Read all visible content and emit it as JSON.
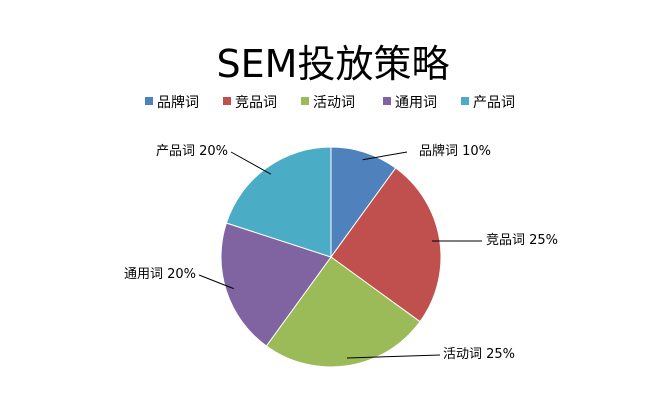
{
  "chart_data": {
    "type": "pie",
    "title": "SEM投放策略",
    "legend_position": "top",
    "slices": [
      {
        "name": "品牌词",
        "value": 10,
        "label": "品牌词 10%",
        "color": "#4f81bd"
      },
      {
        "name": "竞品词",
        "value": 25,
        "label": "竞品词 25%",
        "color": "#c0504d"
      },
      {
        "name": "活动词",
        "value": 25,
        "label": "活动词 25%",
        "color": "#9bbb59"
      },
      {
        "name": "通用词",
        "value": 20,
        "label": "通用词 20%",
        "color": "#8064a2"
      },
      {
        "name": "产品词",
        "value": 20,
        "label": "产品词 20%",
        "color": "#4bacc6"
      }
    ]
  }
}
